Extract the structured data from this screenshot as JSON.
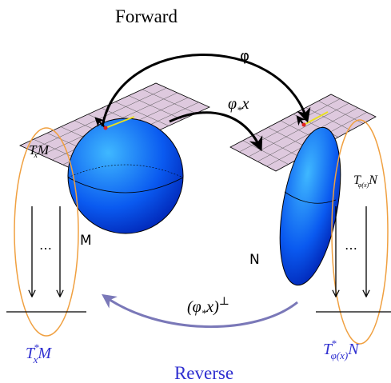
{
  "header": {
    "forward": "Forward",
    "reverse": "Reverse"
  },
  "map": {
    "label": "φ"
  },
  "pushforward": {
    "main": "φ",
    "sub": "*",
    "tail": "x"
  },
  "left_space": {
    "tangent": {
      "main": "T",
      "sub": "x",
      "tail": "M"
    },
    "manifold": "M",
    "dots": "⋯",
    "cotangent": {
      "main": "T",
      "sup": "*",
      "sub": "x",
      "tail": "M"
    }
  },
  "right_space": {
    "tangent": {
      "main": "T",
      "sub": "φ(x)",
      "tail": "N"
    },
    "manifold": "N",
    "dots": "⋯",
    "cotangent": {
      "main": "T",
      "sup": "*",
      "sub": "φ(x)",
      "tail": "N"
    }
  },
  "orthogonal": {
    "pre": "(φ",
    "sub": "*",
    "post": "x)",
    "sup": "⊥"
  }
}
